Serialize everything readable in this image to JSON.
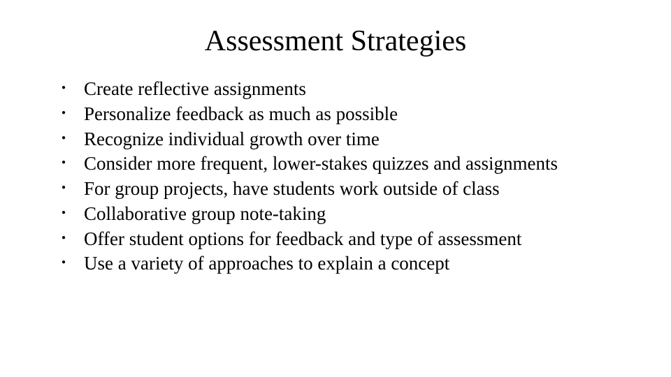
{
  "slide": {
    "title": "Assessment Strategies",
    "bullets": [
      "Create reflective assignments",
      "Personalize feedback as much as possible",
      "Recognize individual growth over time",
      "Consider more frequent, lower-stakes quizzes and assignments",
      "For group projects, have students work outside of class",
      "Collaborative group note-taking",
      "Offer student options for feedback and type of assessment",
      "Use a variety of approaches to explain a concept"
    ],
    "title_fontsize": 42,
    "body_fontsize": 27,
    "font_family": "Times New Roman",
    "text_color": "#000000",
    "background_color": "#ffffff",
    "bullet_glyph": "●"
  }
}
